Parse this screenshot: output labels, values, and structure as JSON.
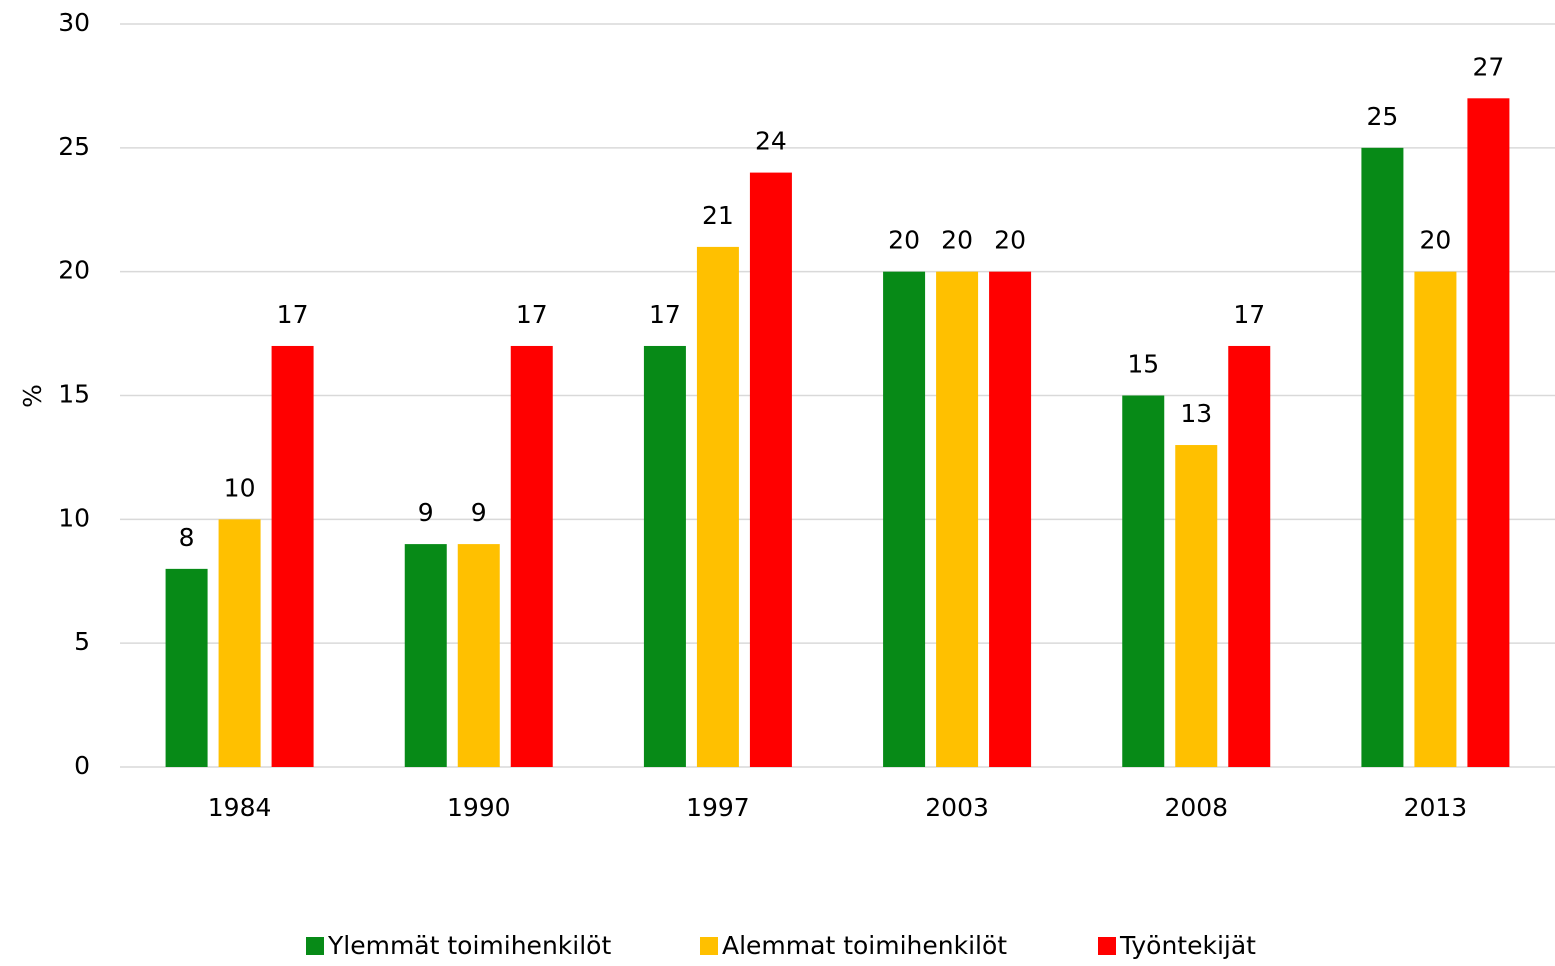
{
  "chart_data": {
    "type": "bar",
    "ylabel": "%",
    "categories": [
      "1984",
      "1990",
      "1997",
      "2003",
      "2008",
      "2013"
    ],
    "series": [
      {
        "name": "Ylemmät toimihenkilöt",
        "color": "#078a17",
        "values": [
          8,
          9,
          17,
          20,
          15,
          25
        ]
      },
      {
        "name": "Alemmat toimihenkilöt",
        "color": "#ffc000",
        "values": [
          10,
          9,
          21,
          20,
          13,
          20
        ]
      },
      {
        "name": "Työntekijät",
        "color": "#ff0000",
        "values": [
          17,
          17,
          24,
          20,
          17,
          27
        ]
      }
    ],
    "ylim": [
      0,
      30
    ],
    "yticks": [
      0,
      5,
      10,
      15,
      20,
      25,
      30
    ],
    "grid": true,
    "legend": "bottom"
  }
}
